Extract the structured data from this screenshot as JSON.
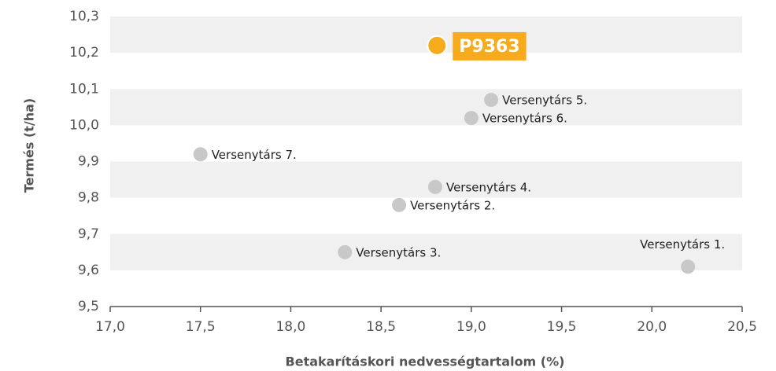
{
  "chart_data": {
    "type": "scatter",
    "xlabel": "Betakarításkori nedvességtartalom (%)",
    "ylabel": "Termés (t/ha)",
    "x": [
      18.81,
      19.11,
      19.0,
      17.5,
      18.8,
      18.6,
      18.3,
      20.2
    ],
    "values": [
      10.22,
      10.07,
      10.02,
      9.92,
      9.83,
      9.78,
      9.65,
      9.61
    ],
    "point_labels": [
      "P9363",
      "Versenytárs 5.",
      "Versenytárs 6.",
      "Versenytárs 7.",
      "Versenytárs 4.",
      "Versenytárs 2.",
      "Versenytárs 3.",
      "Versenytárs 1."
    ],
    "colors": [
      "#f5ab1b",
      "#c8c8c8",
      "#c8c8c8",
      "#c8c8c8",
      "#c8c8c8",
      "#c8c8c8",
      "#c8c8c8",
      "#c8c8c8"
    ],
    "highlight": 0,
    "xlim": [
      17.0,
      20.5
    ],
    "xticks": [
      {
        "value": 17.0,
        "label": "17,0"
      },
      {
        "value": 17.5,
        "label": "17,5"
      },
      {
        "value": 18.0,
        "label": "18,0"
      },
      {
        "value": 18.5,
        "label": "18,5"
      },
      {
        "value": 19.0,
        "label": "19,0"
      },
      {
        "value": 19.5,
        "label": "19,5"
      },
      {
        "value": 20.0,
        "label": "20,0"
      },
      {
        "value": 20.5,
        "label": "20,5"
      }
    ],
    "ylim": [
      9.5,
      10.3
    ],
    "yticks": [
      {
        "value": 9.5,
        "label": "9,5"
      },
      {
        "value": 9.6,
        "label": "9,6"
      },
      {
        "value": 9.7,
        "label": "9,7"
      },
      {
        "value": 9.8,
        "label": "9,8"
      },
      {
        "value": 9.9,
        "label": "9,9"
      },
      {
        "value": 10.0,
        "label": "10,0"
      },
      {
        "value": 10.1,
        "label": "10,1"
      },
      {
        "value": 10.2,
        "label": "10,2"
      },
      {
        "value": 10.3,
        "label": "10,3"
      }
    ],
    "grid": "bands"
  }
}
